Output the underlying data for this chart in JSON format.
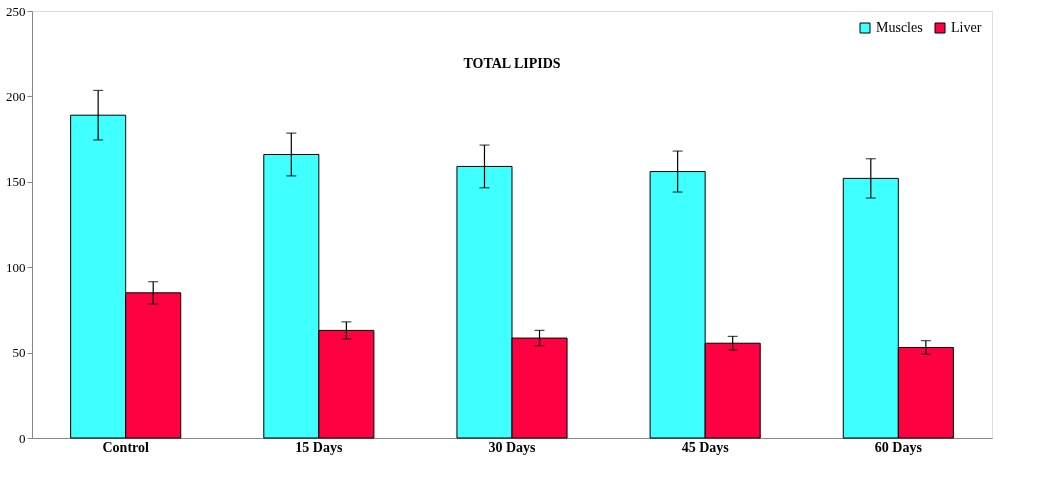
{
  "chart_data": {
    "type": "bar",
    "title": "TOTAL LIPIDS",
    "categories": [
      "Control",
      "15 Days",
      "30 Days",
      "45 Days",
      "60 Days"
    ],
    "series": [
      {
        "name": "Muscles",
        "color": "#40ffff",
        "values": [
          189,
          166,
          159,
          156,
          152
        ],
        "errors": [
          14.5,
          12.5,
          12.5,
          12,
          11.5
        ]
      },
      {
        "name": "Liver",
        "color": "#ff0040",
        "values": [
          85,
          63,
          58.5,
          55.5,
          53
        ],
        "errors": [
          6.5,
          5,
          4.5,
          4,
          4
        ]
      }
    ],
    "ylim": [
      0,
      250
    ],
    "yticks": [
      0,
      50,
      100,
      150,
      200,
      250
    ],
    "grid": false,
    "legend": "top right"
  }
}
